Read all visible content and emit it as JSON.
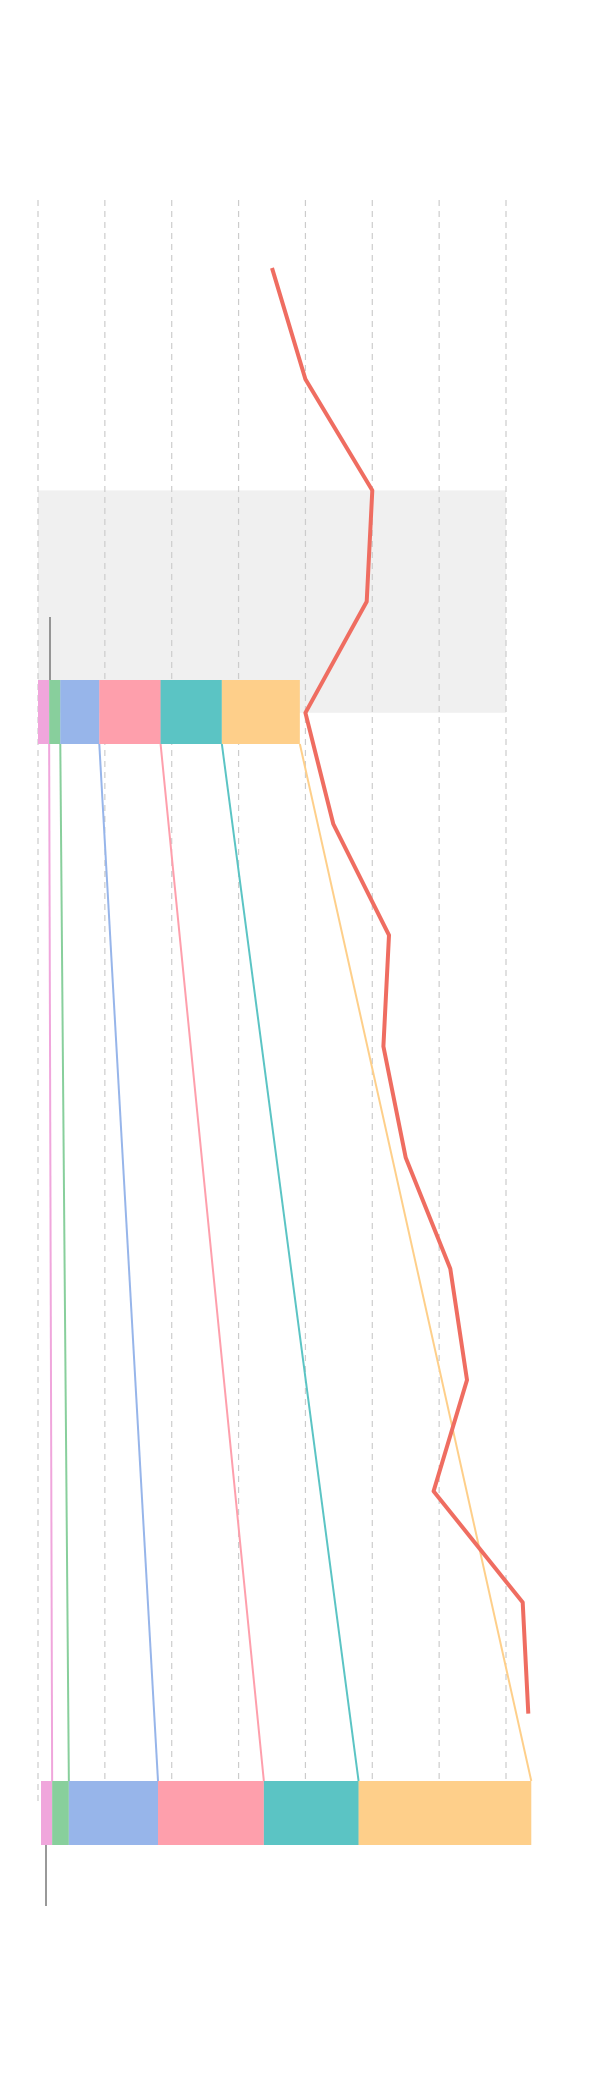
{
  "chart_data": {
    "type": "bar",
    "description_free": true,
    "bars": [
      {
        "name": "",
        "segments": [
          2,
          2,
          7,
          11,
          11,
          14
        ]
      },
      {
        "name": "",
        "segments": [
          2,
          3,
          16,
          19,
          17,
          31
        ]
      }
    ],
    "segment_colors": [
      "#f0a6dc",
      "#88cf9c",
      "#97b5ea",
      "#fe9fac",
      "#5bc4c4",
      "#fecf8a"
    ],
    "line_series": {
      "values": [
        42,
        48,
        60,
        59,
        48,
        53,
        63,
        62,
        66,
        74,
        77,
        71,
        87,
        88
      ],
      "color": "#ef6d61"
    },
    "xlim": [
      0,
      84
    ],
    "x_gridlines": [
      0,
      12,
      24,
      36,
      48,
      60,
      72,
      84
    ],
    "highlight_band": {
      "from_row": 2,
      "to_row": 4,
      "color": "#f0f0f0"
    },
    "grid": true,
    "gridline_color": "#cccccc",
    "axis_line_color": "#777777"
  }
}
